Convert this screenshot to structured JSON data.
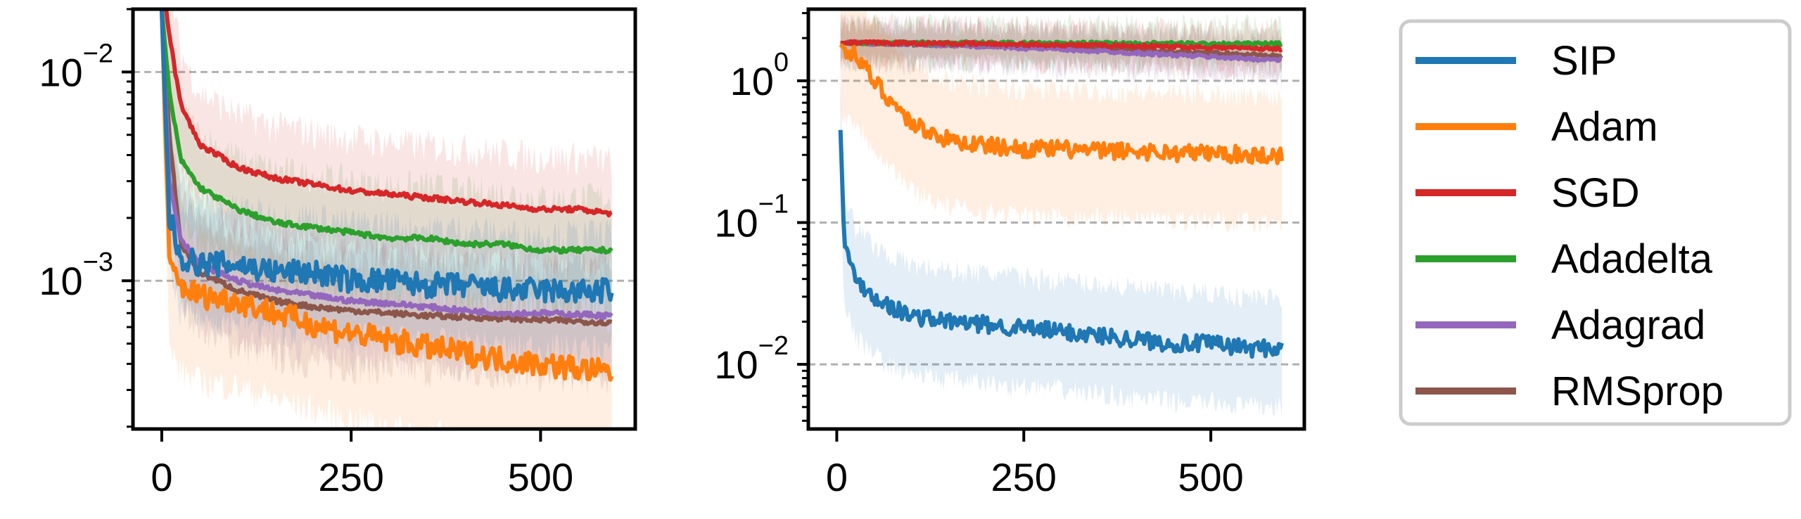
{
  "chart_data": [
    {
      "type": "line",
      "yscale": "log",
      "xlim": [
        -38,
        625
      ],
      "ylim": [
        0.000195,
        0.02
      ],
      "xticks": [
        "0",
        "250",
        "500"
      ],
      "xtick_values": [
        0,
        250,
        500
      ],
      "yticks": [
        {
          "base": "10",
          "exp": "-2",
          "value": 0.01
        },
        {
          "base": "10",
          "exp": "-3",
          "value": 0.001
        }
      ],
      "grid": "horizontal dashed at decades",
      "x": [
        0,
        10,
        25,
        50,
        100,
        150,
        200,
        250,
        300,
        350,
        400,
        450,
        500,
        550,
        595
      ],
      "series": [
        {
          "name": "SIP",
          "color": "#1f77b4",
          "values": [
            0.02,
            0.002,
            0.0013,
            0.0012,
            0.0012,
            0.0011,
            0.0011,
            0.001,
            0.001,
            0.00095,
            0.00095,
            0.0009,
            0.0009,
            0.00088,
            0.0009
          ],
          "band": [
            0.55,
            1.8
          ]
        },
        {
          "name": "Adam",
          "color": "#ff7f0e",
          "values": [
            0.02,
            0.0012,
            0.00095,
            0.00085,
            0.0008,
            0.0007,
            0.00062,
            0.00056,
            0.00052,
            0.00048,
            0.00045,
            0.00042,
            0.0004,
            0.00038,
            0.00036
          ],
          "band": [
            0.4,
            1.8
          ]
        },
        {
          "name": "SGD",
          "color": "#d62728",
          "values": [
            0.03,
            0.015,
            0.007,
            0.0045,
            0.0035,
            0.0031,
            0.0029,
            0.0027,
            0.0026,
            0.0025,
            0.0024,
            0.0023,
            0.0022,
            0.0022,
            0.0021
          ],
          "band": [
            0.55,
            1.7
          ]
        },
        {
          "name": "Adadelta",
          "color": "#2ca02c",
          "values": [
            0.02,
            0.008,
            0.0038,
            0.0028,
            0.0022,
            0.0019,
            0.0018,
            0.0017,
            0.0016,
            0.0016,
            0.0015,
            0.0015,
            0.0014,
            0.0014,
            0.0014
          ],
          "band": [
            0.55,
            1.7
          ]
        },
        {
          "name": "Adagrad",
          "color": "#9467bd",
          "values": [
            0.02,
            0.003,
            0.0016,
            0.0012,
            0.001,
            0.0009,
            0.00085,
            0.0008,
            0.00078,
            0.00075,
            0.00072,
            0.0007,
            0.0007,
            0.00069,
            0.00068
          ],
          "band": [
            0.55,
            1.7
          ]
        },
        {
          "name": "RMSprop",
          "color": "#8c564b",
          "values": [
            0.02,
            0.005,
            0.0015,
            0.0011,
            0.0009,
            0.0008,
            0.00075,
            0.00072,
            0.0007,
            0.00068,
            0.00067,
            0.00066,
            0.00065,
            0.00064,
            0.00063
          ],
          "band": [
            0.55,
            1.7
          ]
        }
      ]
    },
    {
      "type": "line",
      "yscale": "log",
      "xlim": [
        -38,
        625
      ],
      "ylim": [
        0.0035,
        3.2
      ],
      "xticks": [
        "0",
        "250",
        "500"
      ],
      "xtick_values": [
        0,
        250,
        500
      ],
      "yticks": [
        {
          "base": "10",
          "exp": "0",
          "value": 1
        },
        {
          "base": "10",
          "exp": "-1",
          "value": 0.1
        },
        {
          "base": "10",
          "exp": "-2",
          "value": 0.01
        }
      ],
      "grid": "horizontal dashed at decades",
      "x": [
        5,
        10,
        25,
        50,
        75,
        100,
        150,
        200,
        250,
        300,
        350,
        400,
        450,
        500,
        550,
        595
      ],
      "series": [
        {
          "name": "SIP",
          "color": "#1f77b4",
          "values": [
            0.45,
            0.07,
            0.04,
            0.03,
            0.025,
            0.022,
            0.02,
            0.019,
            0.018,
            0.017,
            0.016,
            0.015,
            0.014,
            0.014,
            0.013,
            0.013
          ],
          "band": [
            0.4,
            2.2
          ]
        },
        {
          "name": "Adam",
          "color": "#ff7f0e",
          "values": [
            1.8,
            1.7,
            1.5,
            1.0,
            0.7,
            0.5,
            0.38,
            0.35,
            0.33,
            0.33,
            0.32,
            0.32,
            0.31,
            0.31,
            0.3,
            0.3
          ],
          "band": [
            0.35,
            2.5
          ]
        },
        {
          "name": "SGD",
          "color": "#d62728",
          "values": [
            1.85,
            1.85,
            1.85,
            1.85,
            1.85,
            1.84,
            1.83,
            1.82,
            1.8,
            1.79,
            1.77,
            1.76,
            1.74,
            1.72,
            1.7,
            1.68
          ],
          "band": [
            0.75,
            1.3
          ]
        },
        {
          "name": "Adadelta",
          "color": "#2ca02c",
          "values": [
            1.85,
            1.85,
            1.85,
            1.85,
            1.85,
            1.85,
            1.85,
            1.85,
            1.84,
            1.84,
            1.84,
            1.83,
            1.83,
            1.83,
            1.82,
            1.82
          ],
          "band": [
            0.75,
            1.3
          ]
        },
        {
          "name": "Adagrad",
          "color": "#9467bd",
          "values": [
            1.85,
            1.85,
            1.84,
            1.83,
            1.82,
            1.81,
            1.78,
            1.75,
            1.7,
            1.66,
            1.62,
            1.57,
            1.52,
            1.48,
            1.43,
            1.4
          ],
          "band": [
            0.75,
            1.3
          ]
        },
        {
          "name": "RMSprop",
          "color": "#8c564b",
          "values": [
            1.85,
            1.85,
            1.85,
            1.84,
            1.83,
            1.82,
            1.8,
            1.78,
            1.75,
            1.72,
            1.69,
            1.65,
            1.61,
            1.57,
            1.53,
            1.5
          ],
          "band": [
            0.75,
            1.3
          ]
        }
      ]
    }
  ],
  "legend": {
    "placement": "right",
    "items": [
      {
        "label": "SIP",
        "color": "#1f77b4"
      },
      {
        "label": "Adam",
        "color": "#ff7f0e"
      },
      {
        "label": "SGD",
        "color": "#d62728"
      },
      {
        "label": "Adadelta",
        "color": "#2ca02c"
      },
      {
        "label": "Adagrad",
        "color": "#9467bd"
      },
      {
        "label": "RMSprop",
        "color": "#8c564b"
      }
    ]
  }
}
